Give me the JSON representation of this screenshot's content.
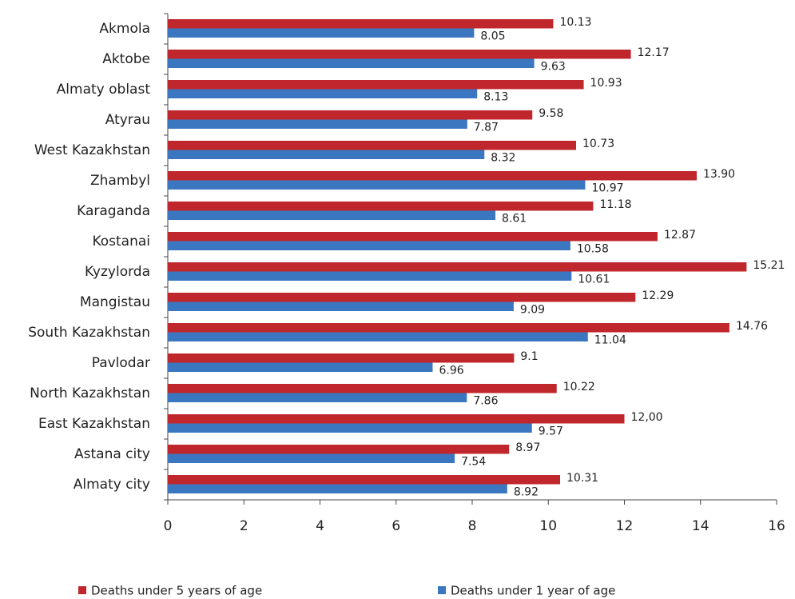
{
  "chart_data": {
    "type": "bar",
    "orientation": "horizontal",
    "categories": [
      "Akmola",
      "Aktobe",
      "Almaty oblast",
      "Atyrau",
      "West Kazakhstan",
      "Zhambyl",
      "Karaganda",
      "Kostanai",
      "Kyzylorda",
      "Mangistau",
      "South Kazakhstan",
      "Pavlodar",
      "North Kazakhstan",
      "East Kazakhstan",
      "Astana city",
      "Almaty city"
    ],
    "series": [
      {
        "name": "Deaths under 5 years of age",
        "color": "#c0272d",
        "values": [
          10.13,
          12.17,
          10.93,
          9.58,
          10.73,
          13.9,
          11.18,
          12.87,
          15.21,
          12.29,
          14.76,
          9.1,
          10.22,
          12,
          8.97,
          10.31
        ],
        "value_labels": [
          "10.13",
          "12.17",
          "10.93",
          "9.58",
          "10.73",
          "13.90",
          "11.18",
          "12.87",
          "15.21",
          "12.29",
          "14.76",
          "9.1",
          "10.22",
          "12,00",
          "8.97",
          "10.31"
        ]
      },
      {
        "name": "Deaths under 1 year of age",
        "color": "#3a77c0",
        "values": [
          8.05,
          9.63,
          8.13,
          7.87,
          8.32,
          10.97,
          8.61,
          10.58,
          10.61,
          9.09,
          11.04,
          6.96,
          7.86,
          9.57,
          7.54,
          8.92
        ],
        "value_labels": [
          "8.05",
          "9.63",
          "8.13",
          "7.87",
          "8.32",
          "10.97",
          "8.61",
          "10.58",
          "10.61",
          "9.09",
          "11.04",
          "6.96",
          "7.86",
          "9.57",
          "7.54",
          "8.92"
        ]
      }
    ],
    "xlim": [
      0,
      16
    ],
    "xticks": [
      0,
      2,
      4,
      6,
      8,
      10,
      12,
      14,
      16
    ],
    "legend": "bottom"
  }
}
